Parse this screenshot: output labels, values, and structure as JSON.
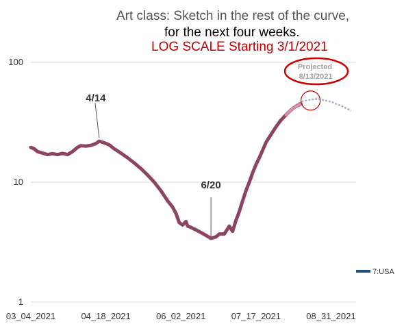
{
  "title": {
    "line1": "Art class:  Sketch in the rest of the curve,",
    "line2": "for the next four weeks.",
    "line3": "LOG SCALE Starting 3/1/2021"
  },
  "colors": {
    "series": "#8b4462",
    "projection": "#a8b4c4",
    "highlight": "#e8a5b8",
    "circle": "#cc0000",
    "legend": "#1f4e79",
    "title_accent": "#c00000"
  },
  "chart_data": {
    "type": "line",
    "scale": "log",
    "ylim": [
      1,
      100
    ],
    "y_ticks": [
      "1",
      "10",
      "100"
    ],
    "x_ticks": [
      "03_04_2021",
      "04_18_2021",
      "06_02_2021",
      "07_17_2021",
      "08_31_2021"
    ],
    "x_range": [
      "2021-03-04",
      "2021-09-15"
    ],
    "legend": {
      "label": "7:USA",
      "position": "right"
    },
    "grid": "horizontal",
    "annotations": [
      {
        "text": "4/14",
        "date": "2021-04-14",
        "value": 22.5
      },
      {
        "text": "6/20",
        "date": "2021-06-20",
        "value": 3.4
      },
      {
        "text": "Projected 8/13/2021",
        "date": "2021-08-13",
        "value": 48
      }
    ],
    "series": [
      {
        "name": "7:USA",
        "points": [
          [
            "2021-03-04",
            19.5
          ],
          [
            "2021-03-06",
            19.0
          ],
          [
            "2021-03-08",
            18.0
          ],
          [
            "2021-03-11",
            17.5
          ],
          [
            "2021-03-14",
            17.0
          ],
          [
            "2021-03-17",
            17.3
          ],
          [
            "2021-03-20",
            17.0
          ],
          [
            "2021-03-23",
            17.4
          ],
          [
            "2021-03-26",
            17.0
          ],
          [
            "2021-03-29",
            18.0
          ],
          [
            "2021-04-01",
            19.5
          ],
          [
            "2021-04-03",
            20.2
          ],
          [
            "2021-04-06",
            20.0
          ],
          [
            "2021-04-09",
            20.3
          ],
          [
            "2021-04-12",
            21.0
          ],
          [
            "2021-04-14",
            22.0
          ],
          [
            "2021-04-17",
            21.3
          ],
          [
            "2021-04-20",
            20.5
          ],
          [
            "2021-04-23",
            19.0
          ],
          [
            "2021-04-27",
            17.5
          ],
          [
            "2021-05-01",
            16.0
          ],
          [
            "2021-05-05",
            14.5
          ],
          [
            "2021-05-09",
            13.0
          ],
          [
            "2021-05-13",
            11.5
          ],
          [
            "2021-05-17",
            10.0
          ],
          [
            "2021-05-21",
            8.5
          ],
          [
            "2021-05-25",
            7.0
          ],
          [
            "2021-05-28",
            6.2
          ],
          [
            "2021-05-30",
            5.5
          ],
          [
            "2021-06-01",
            4.6
          ],
          [
            "2021-06-03",
            4.4
          ],
          [
            "2021-06-05",
            4.7
          ],
          [
            "2021-06-06",
            4.3
          ],
          [
            "2021-06-08",
            4.2
          ],
          [
            "2021-06-11",
            4.0
          ],
          [
            "2021-06-14",
            3.8
          ],
          [
            "2021-06-17",
            3.6
          ],
          [
            "2021-06-20",
            3.4
          ],
          [
            "2021-06-23",
            3.5
          ],
          [
            "2021-06-25",
            3.7
          ],
          [
            "2021-06-28",
            3.7
          ],
          [
            "2021-07-01",
            4.3
          ],
          [
            "2021-07-03",
            3.9
          ],
          [
            "2021-07-05",
            4.8
          ],
          [
            "2021-07-07",
            5.7
          ],
          [
            "2021-07-09",
            7.0
          ],
          [
            "2021-07-11",
            8.5
          ],
          [
            "2021-07-13",
            10.0
          ],
          [
            "2021-07-15",
            12.0
          ],
          [
            "2021-07-17",
            14.0
          ],
          [
            "2021-07-19",
            16.0
          ],
          [
            "2021-07-21",
            18.5
          ],
          [
            "2021-07-23",
            21.5
          ],
          [
            "2021-07-26",
            25.0
          ],
          [
            "2021-07-29",
            29.0
          ],
          [
            "2021-08-01",
            33.0
          ],
          [
            "2021-08-04",
            36.5
          ],
          [
            "2021-08-07",
            40.0
          ],
          [
            "2021-08-10",
            43.0
          ],
          [
            "2021-08-13",
            45.0
          ]
        ]
      },
      {
        "name": "projection",
        "points": [
          [
            "2021-08-07",
            40.0
          ],
          [
            "2021-08-10",
            44.0
          ],
          [
            "2021-08-13",
            47.0
          ],
          [
            "2021-08-16",
            48.0
          ],
          [
            "2021-08-19",
            48.8
          ],
          [
            "2021-08-22",
            49.5
          ],
          [
            "2021-08-25",
            49.0
          ],
          [
            "2021-08-28",
            48.0
          ],
          [
            "2021-08-31",
            47.0
          ],
          [
            "2021-09-03",
            45.0
          ],
          [
            "2021-09-06",
            43.5
          ],
          [
            "2021-09-09",
            41.5
          ],
          [
            "2021-09-12",
            39.5
          ]
        ]
      }
    ]
  }
}
